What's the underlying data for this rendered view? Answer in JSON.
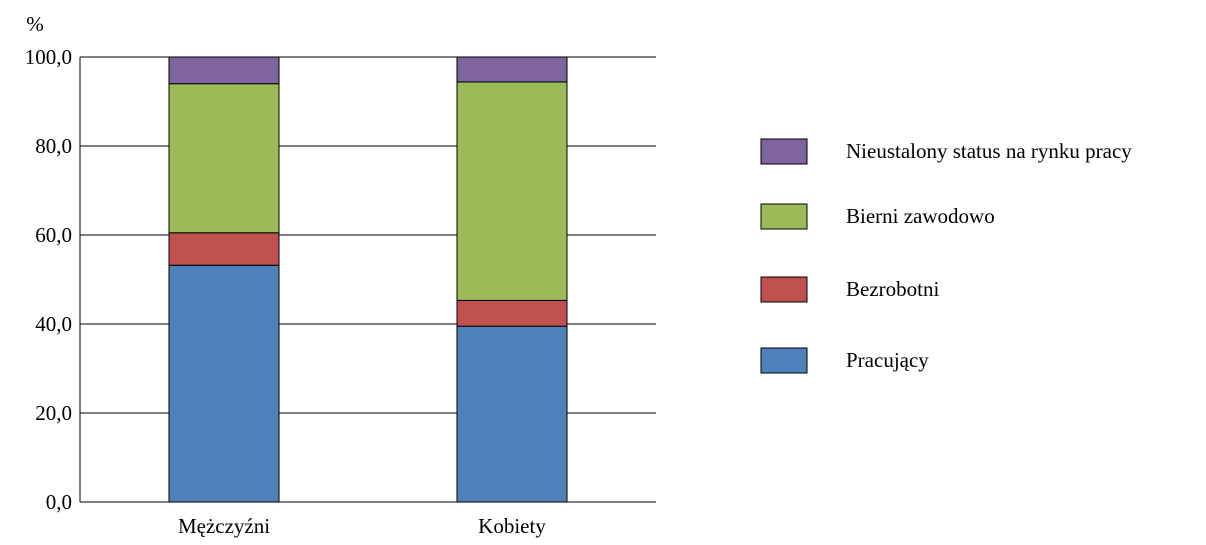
{
  "chart_data": {
    "type": "bar",
    "stacked": true,
    "unit_label": "%",
    "categories": [
      "Mężczyźni",
      "Kobiety"
    ],
    "series": [
      {
        "name": "Pracujący",
        "color": "#4f81bd",
        "values": [
          53.2,
          39.5
        ]
      },
      {
        "name": "Bezrobotni",
        "color": "#c0504d",
        "values": [
          7.3,
          5.8
        ]
      },
      {
        "name": "Bierni zawodowo",
        "color": "#9bbb59",
        "values": [
          33.5,
          49.1
        ]
      },
      {
        "name": "Nieustalony status na rynku pracy",
        "color": "#8064a2",
        "values": [
          6.0,
          5.6
        ]
      }
    ],
    "yticks": [
      "0,0",
      "20,0",
      "40,0",
      "60,0",
      "80,0",
      "100,0"
    ],
    "ylim": [
      0,
      100
    ],
    "grid": true,
    "legend_position": "right",
    "legend_order": [
      "Nieustalony status na rynku pracy",
      "Bierni zawodowo",
      "Bezrobotni",
      "Pracujący"
    ]
  }
}
